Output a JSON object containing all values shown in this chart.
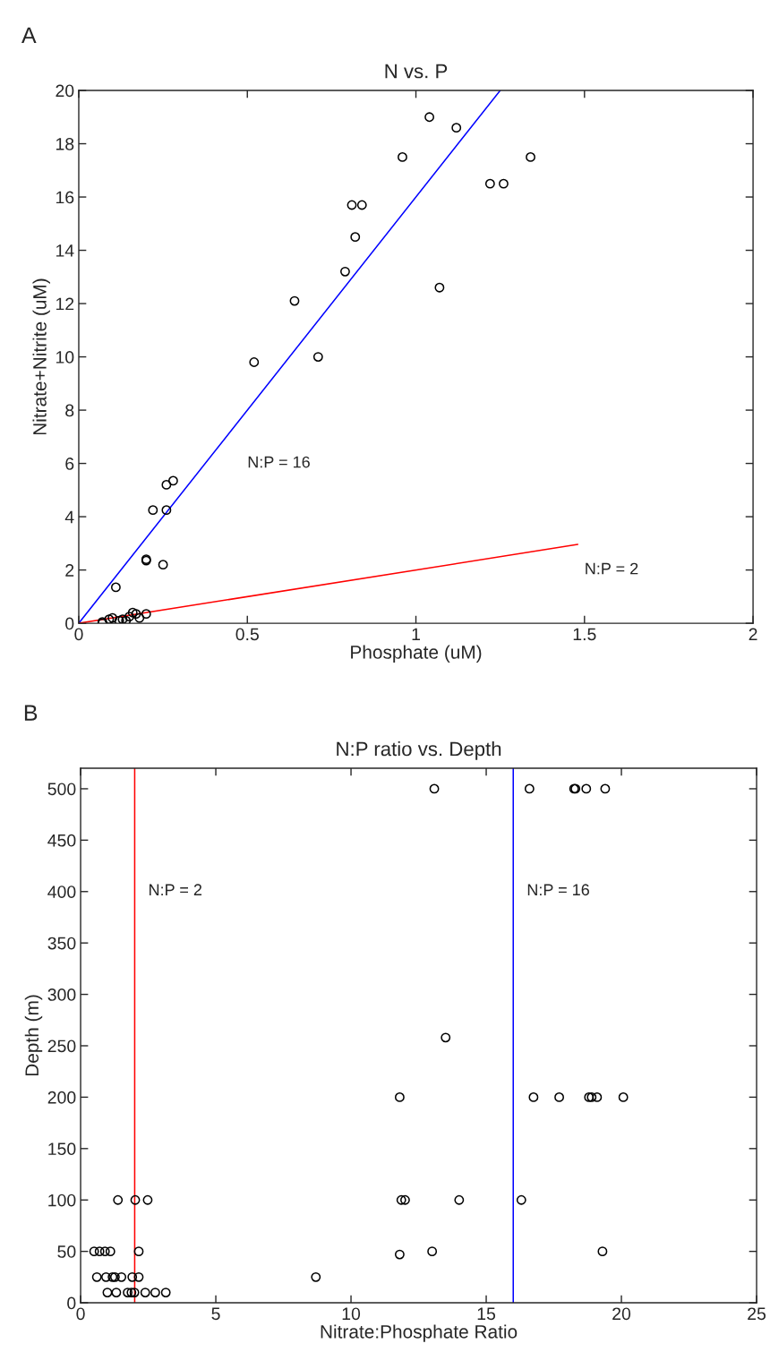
{
  "chart_data": [
    {
      "type": "scatter",
      "title": "N vs. P",
      "xlabel": "Phosphate (uM)",
      "ylabel": "Nitrate+Nitrite (uM)",
      "xlim": [
        0,
        2
      ],
      "xticks": [
        0,
        0.5,
        1,
        1.5,
        2
      ],
      "ylim": [
        0,
        20
      ],
      "yticks": [
        0,
        2,
        4,
        6,
        8,
        10,
        12,
        14,
        16,
        18,
        20
      ],
      "grid": false,
      "marker": "circle",
      "series": [
        {
          "color": "#000000",
          "x": [
            1.04,
            1.12,
            0.96,
            1.34,
            1.22,
            1.26,
            0.81,
            0.84,
            0.82,
            0.79,
            1.07,
            0.64,
            0.71,
            0.52,
            0.28,
            0.26,
            0.22,
            0.26,
            0.2,
            0.2,
            0.25,
            0.11,
            0.2,
            0.07,
            0.07,
            0.09,
            0.1,
            0.12,
            0.13,
            0.15,
            0.16,
            0.17,
            0.18,
            0.14
          ],
          "values": [
            19.0,
            18.6,
            17.5,
            17.5,
            16.5,
            16.5,
            15.7,
            15.7,
            14.5,
            13.2,
            12.6,
            12.1,
            10.0,
            9.8,
            5.35,
            5.2,
            4.25,
            4.25,
            2.4,
            2.35,
            2.2,
            1.35,
            0.35,
            0.05,
            0.0,
            0.15,
            0.2,
            0.1,
            0.15,
            0.25,
            0.4,
            0.35,
            0.2,
            0.1
          ]
        },
        {
          "type": "line",
          "color": "#0000ff",
          "x": [
            0,
            1.25
          ],
          "values": [
            0,
            20
          ],
          "line_style": "solid",
          "marker": "none"
        },
        {
          "type": "line",
          "color": "#ff0000",
          "x": [
            0,
            1.48
          ],
          "values": [
            0,
            2.96
          ],
          "line_style": "solid",
          "marker": "none"
        }
      ],
      "annotations": [
        "A",
        "N:P = 16",
        "N:P = 2"
      ]
    },
    {
      "type": "scatter",
      "title": "N:P ratio vs. Depth",
      "xlabel": "Nitrate:Phosphate Ratio",
      "ylabel": "Depth (m)",
      "xlim": [
        0,
        25
      ],
      "xticks": [
        0,
        5,
        10,
        15,
        20,
        25
      ],
      "ylim": [
        0,
        520
      ],
      "yticks": [
        0,
        50,
        100,
        150,
        200,
        250,
        300,
        350,
        400,
        450,
        500
      ],
      "grid": false,
      "marker": "circle",
      "series": [
        {
          "color": "#000000",
          "x": [
            13.08,
            16.6,
            18.25,
            18.3,
            18.7,
            19.4,
            13.5,
            11.8,
            16.75,
            17.7,
            18.8,
            18.9,
            19.1,
            20.07,
            11.86,
            12.0,
            14.0,
            16.3,
            1.38,
            2.02,
            2.48,
            13.0,
            19.3,
            11.8,
            0.5,
            0.7,
            0.9,
            1.1,
            2.15,
            8.7,
            0.6,
            0.94,
            1.18,
            1.27,
            1.51,
            1.91,
            2.15,
            0.99,
            1.32,
            1.74,
            1.88,
            1.99,
            2.39,
            2.76,
            3.15
          ],
          "values": [
            500,
            500,
            500,
            500,
            500,
            500,
            258,
            200,
            200,
            200,
            200,
            200,
            200,
            200,
            100,
            100,
            100,
            100,
            100,
            100,
            100,
            50,
            50,
            47,
            50,
            50,
            50,
            50,
            50,
            25,
            25,
            25,
            25,
            25,
            25,
            25,
            25,
            10,
            10,
            10,
            10,
            10,
            10,
            10,
            10
          ]
        }
      ],
      "ref_lines": [
        {
          "axis": "x",
          "value": 2,
          "color": "#ff0000",
          "line_style": "solid"
        },
        {
          "axis": "x",
          "value": 16,
          "color": "#0000ff",
          "line_style": "solid"
        }
      ],
      "annotations": [
        "B",
        "N:P = 2",
        "N:P = 16"
      ]
    }
  ]
}
